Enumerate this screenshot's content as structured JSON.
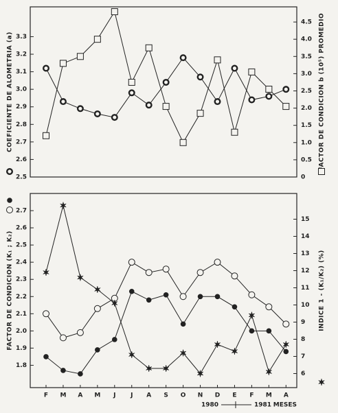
{
  "chart_data": [
    {
      "type": "line",
      "ylabel": "COEFICIENTE DE ALOMETRIA (a)",
      "y2label": "FACTOR DE CONDICION b (10⁵) PROMEDIO",
      "ylim": [
        2.5,
        3.47
      ],
      "yticks": [
        2.5,
        2.6,
        2.7,
        2.8,
        2.9,
        {
          "value": 3,
          "label": "3.0"
        },
        3.1,
        3.2,
        3.3
      ],
      "y2lim": [
        0,
        4.94
      ],
      "y2ticks": [
        0,
        0.5,
        {
          "value": 1,
          "label": "1.0"
        },
        1.5,
        {
          "value": 2,
          "label": "2.0"
        },
        2.5,
        {
          "value": 3,
          "label": "3.0"
        },
        3.5,
        {
          "value": 4,
          "label": "4.0"
        },
        4.5
      ],
      "series": [
        {
          "marker": "circle-thick",
          "color": "#222",
          "values": [
            3.12,
            2.93,
            2.89,
            2.86,
            2.84,
            2.98,
            2.91,
            3.04,
            3.18,
            3.07,
            2.93,
            3.12,
            2.94,
            2.96,
            3.0
          ]
        },
        {
          "marker": "square",
          "color": "#222",
          "axis": "y2",
          "values": [
            1.2,
            3.3,
            3.5,
            4.0,
            4.8,
            2.75,
            3.75,
            2.05,
            1.0,
            1.85,
            3.4,
            1.3,
            3.05,
            2.55,
            2.05
          ]
        }
      ]
    },
    {
      "type": "line",
      "categories": [
        "F",
        "M",
        "A",
        "M",
        "J",
        "J",
        "A",
        "S",
        "O",
        "N",
        "D",
        "E",
        "F",
        "M",
        "A"
      ],
      "xlabel": "MESES",
      "period": [
        "1980",
        "1981"
      ],
      "ylabel": "FACTOR DE CONDICION (K₁ ; K₂)",
      "y2label": "INDICE 1 - (K₁/K₂) (%)",
      "ylim": [
        1.67,
        2.8
      ],
      "yticks": [
        1.8,
        1.9,
        {
          "value": 2,
          "label": "2.0"
        },
        2.1,
        2.2,
        2.3,
        2.4,
        2.5,
        2.6,
        2.7
      ],
      "y2lim": [
        5.18,
        16.5
      ],
      "y2ticks": [
        6,
        7,
        8,
        9,
        10,
        11,
        12,
        13,
        14,
        15
      ],
      "series": [
        {
          "marker": "circle-filled",
          "color": "#222",
          "values": [
            1.85,
            1.77,
            1.75,
            1.89,
            1.95,
            2.23,
            2.18,
            2.21,
            2.04,
            2.2,
            2.2,
            2.14,
            2.0,
            2.0,
            1.88
          ]
        },
        {
          "marker": "circle-open",
          "color": "#222",
          "values": [
            2.1,
            1.96,
            1.99,
            2.13,
            2.19,
            2.4,
            2.34,
            2.36,
            2.2,
            2.34,
            2.4,
            2.32,
            2.21,
            2.14,
            2.04
          ]
        },
        {
          "marker": "star",
          "color": "#222",
          "axis": "y2",
          "values": [
            11.9,
            15.8,
            11.6,
            10.9,
            10.1,
            7.1,
            6.3,
            6.3,
            7.2,
            6.0,
            7.7,
            7.3,
            9.4,
            6.1,
            7.7
          ]
        }
      ]
    }
  ]
}
